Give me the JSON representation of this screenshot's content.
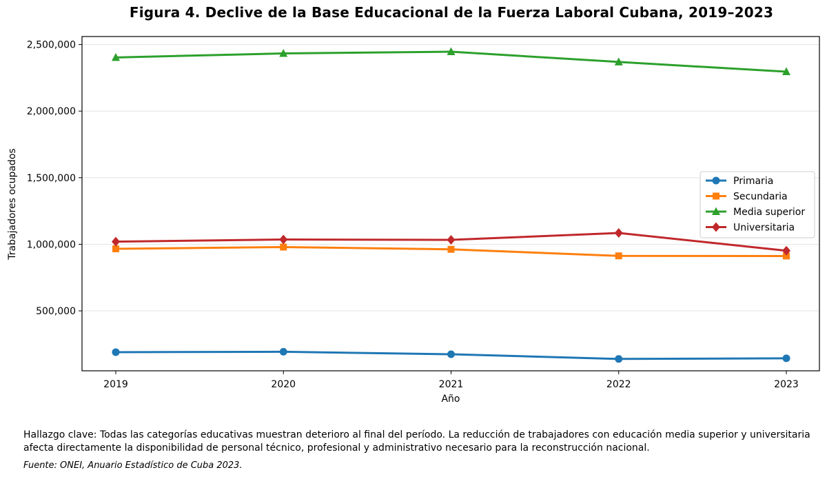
{
  "chart_data": {
    "type": "line",
    "title": "Figura 4. Declive de la Base Educacional de la Fuerza Laboral Cubana, 2019–2023",
    "xlabel": "Año",
    "ylabel": "Trabajadores ocupados",
    "x": [
      2019,
      2020,
      2021,
      2022,
      2023
    ],
    "x_tick_labels": [
      "2019",
      "2020",
      "2021",
      "2022",
      "2023"
    ],
    "ylim": [
      50000,
      2560000
    ],
    "y_ticks": [
      500000,
      1000000,
      1500000,
      2000000,
      2500000
    ],
    "y_tick_labels": [
      "500,000",
      "1,000,000",
      "1,500,000",
      "2,000,000",
      "2,500,000"
    ],
    "grid": "horizontal",
    "legend_position": "center-right",
    "series": [
      {
        "name": "Primaria",
        "color": "#1f77b4",
        "marker": "circle",
        "values": [
          190000,
          193000,
          174000,
          139000,
          144000
        ]
      },
      {
        "name": "Secundaria",
        "color": "#ff7f0e",
        "marker": "square",
        "values": [
          966000,
          979000,
          962000,
          913000,
          912000
        ]
      },
      {
        "name": "Media superior",
        "color": "#2ca02c",
        "marker": "triangle",
        "values": [
          2403000,
          2433000,
          2446000,
          2369000,
          2296000
        ]
      },
      {
        "name": "Universitaria",
        "color": "#c0282b",
        "marker": "diamond",
        "values": [
          1020000,
          1036000,
          1033000,
          1085000,
          952000
        ]
      }
    ]
  },
  "note": "Hallazgo clave: Todas las categorías educativas muestran deterioro al final del período. La reducción de trabajadores con educación media superior y universitaria afecta directamente la disponibilidad de personal técnico, profesional y administrativo necesario para la reconstrucción nacional.",
  "source": "Fuente: ONEI, Anuario Estadístico de Cuba 2023."
}
